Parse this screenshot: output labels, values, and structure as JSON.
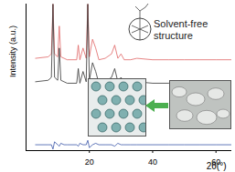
{
  "chart_data": {
    "type": "line",
    "annotation": "Solvent-free structure",
    "x_label": "2θ(°)",
    "y_label": "Intensity (a.u.)",
    "x": [
      3,
      7,
      8,
      8.5,
      9,
      10,
      10.5,
      11,
      12,
      13,
      16,
      16.5,
      17,
      18,
      19,
      19.5,
      20,
      21,
      22,
      23,
      25,
      27,
      28,
      29,
      30,
      31,
      33,
      35,
      40,
      45,
      50,
      55,
      60,
      65
    ],
    "series": [
      {
        "color": "#e06464",
        "values": [
          63,
          64,
          66,
          100,
          66,
          64,
          85,
          64,
          63,
          62,
          62,
          72,
          62,
          70,
          63,
          100,
          64,
          76,
          70,
          62,
          63,
          66,
          72,
          63,
          66,
          62,
          62,
          63,
          62,
          62,
          62,
          62,
          62,
          62
        ]
      },
      {
        "color": "#333333",
        "values": [
          47,
          48,
          50,
          100,
          50,
          48,
          70,
          48,
          47,
          46,
          46,
          56,
          46,
          54,
          47,
          100,
          48,
          60,
          54,
          46,
          47,
          50,
          56,
          47,
          50,
          46,
          46,
          47,
          46,
          46,
          46,
          46,
          46,
          46
        ]
      },
      {
        "color": "#3a55a8",
        "values": [
          4,
          4,
          4,
          1,
          6,
          4,
          3,
          5,
          4,
          4,
          4,
          3,
          5,
          4,
          4,
          7,
          2,
          4,
          5,
          4,
          4,
          4,
          3,
          5,
          4,
          4,
          4,
          4,
          4,
          4,
          4,
          4,
          4,
          4
        ]
      }
    ],
    "xlim": [
      0,
      65
    ],
    "xticks": [
      20,
      40,
      60
    ],
    "ylim": [
      0,
      100
    ],
    "tick_labels": "x"
  }
}
